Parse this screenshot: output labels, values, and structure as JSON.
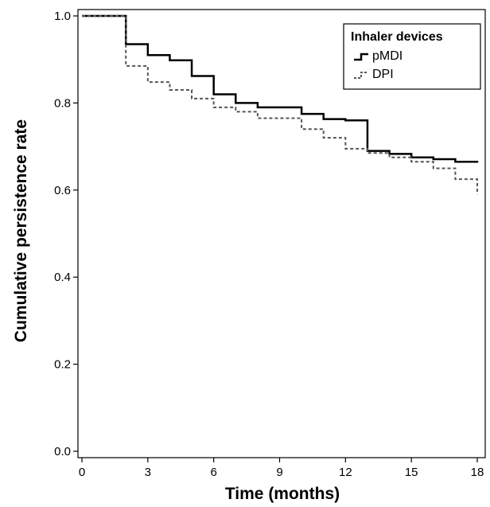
{
  "chart_data": {
    "type": "line",
    "title": "",
    "xlabel": "Time (months)",
    "ylabel": "Cumulative persistence rate",
    "xlim": [
      0,
      18
    ],
    "ylim": [
      0,
      1
    ],
    "x_ticks": [
      0,
      3,
      6,
      9,
      12,
      15,
      18
    ],
    "y_ticks": [
      0.0,
      0.2,
      0.4,
      0.6,
      0.8,
      1.0
    ],
    "x_tick_labels": [
      "0",
      "3",
      "6",
      "9",
      "12",
      "15",
      "18"
    ],
    "y_tick_labels": [
      "0.0",
      "0.2",
      "0.4",
      "0.6",
      "0.8",
      "1.0"
    ],
    "step": true,
    "grid": false,
    "legend": {
      "title": "Inhaler devices",
      "position": "top-right"
    },
    "series": [
      {
        "name": "pMDI",
        "line_style": "solid",
        "color": "#000000",
        "x": [
          0,
          2,
          3,
          4,
          5,
          6,
          7,
          8,
          10,
          11,
          12,
          13,
          14,
          15,
          16,
          17,
          18
        ],
        "y": [
          1.0,
          0.935,
          0.91,
          0.898,
          0.862,
          0.82,
          0.8,
          0.79,
          0.775,
          0.763,
          0.76,
          0.69,
          0.683,
          0.675,
          0.671,
          0.665,
          0.663
        ]
      },
      {
        "name": "DPI",
        "line_style": "dashed",
        "color": "#555555",
        "x": [
          0,
          2,
          3,
          4,
          5,
          6,
          7,
          8,
          10,
          11,
          12,
          13,
          14,
          15,
          16,
          17,
          18
        ],
        "y": [
          1.0,
          0.885,
          0.848,
          0.83,
          0.81,
          0.79,
          0.78,
          0.765,
          0.74,
          0.72,
          0.695,
          0.685,
          0.675,
          0.665,
          0.65,
          0.625,
          0.59
        ]
      }
    ]
  }
}
